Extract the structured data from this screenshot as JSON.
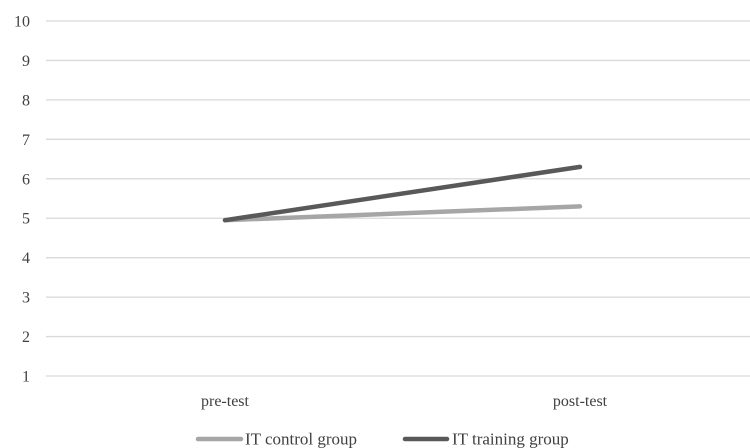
{
  "chart_data": {
    "type": "line",
    "categories": [
      "pre-test",
      "post-test"
    ],
    "series": [
      {
        "name": "IT control group",
        "values": [
          4.95,
          5.3
        ],
        "color": "#a6a6a6"
      },
      {
        "name": "IT training group",
        "values": [
          4.95,
          6.3
        ],
        "color": "#595959"
      }
    ],
    "ylim": [
      1,
      10
    ],
    "yticks": [
      "1",
      "2",
      "3",
      "4",
      "5",
      "6",
      "7",
      "8",
      "9",
      "10"
    ],
    "grid": true,
    "legend_position": "bottom",
    "gridline_color": "#d9d9d9"
  }
}
